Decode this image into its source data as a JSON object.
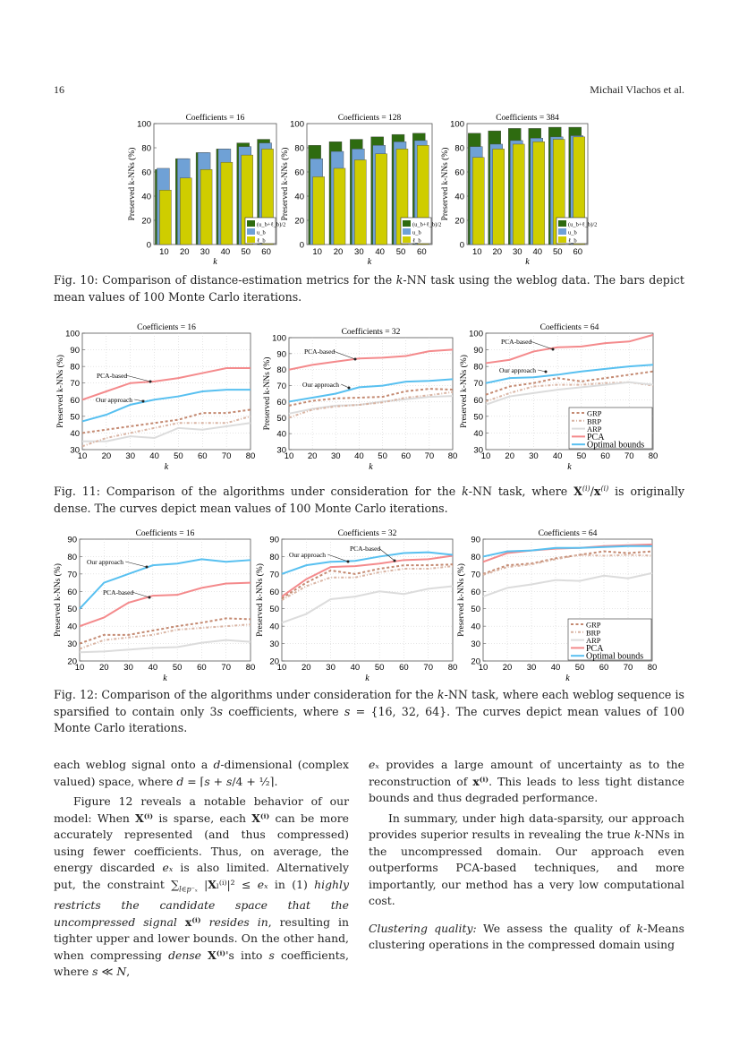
{
  "header": {
    "page_number": "16",
    "running_head": "Michail Vlachos et al."
  },
  "fig10": {
    "caption": [
      "Fig. 10: Comparison of distance-estimation metrics for the ",
      "k",
      "-NN task using the weblog data. The bars depict mean values of 100 Monte Carlo iterations."
    ]
  },
  "fig11": {
    "caption": [
      "Fig. 11: Comparison of the algorithms under consideration for the ",
      "k",
      "-NN task, where ",
      "X",
      "(i)",
      "/",
      "x",
      "(i)",
      " is originally dense. The curves depict mean values of 100 Monte Carlo iterations."
    ]
  },
  "fig12": {
    "caption": [
      "Fig. 12: Comparison of the algorithms under consideration for the ",
      "k",
      "-NN task, where each weblog sequence is sparsified to contain only 3",
      "s",
      " coefficients, where ",
      "s",
      " = {16, 32, 64}. The curves depict mean values of 100 Monte Carlo iterations."
    ]
  },
  "body": {
    "left": {
      "p1": [
        "each weblog signal onto a ",
        "d",
        "-dimensional (complex valued) space, where ",
        "d",
        " = ⌈",
        "s",
        " + ",
        "s",
        "/4 + ½⌉."
      ],
      "p2": [
        "Figure 12 reveals a notable behavior of our model: When ",
        "X⁽ⁱ⁾",
        " is sparse, each ",
        "X⁽ⁱ⁾",
        " can be more accurately represented (and thus compressed) using fewer coefficients. Thus, on average, the energy discarded ",
        "eₓ",
        " is also limited. Alternatively put, the constraint ∑",
        "l∈p⁻ₓ",
        " |",
        "X",
        "ₗ⁽ⁱ⁾|² ≤ ",
        "eₓ",
        " in (1) ",
        "highly restricts the candidate space that the uncompressed signal ",
        "x⁽ⁱ⁾",
        " resides in",
        ", resulting in tighter upper and lower bounds. On the other hand, when compressing ",
        "dense",
        " ",
        "X⁽ⁱ⁾",
        "'s into ",
        "s",
        " coefficients, where ",
        "s",
        " ≪ ",
        "N",
        ","
      ]
    },
    "right": {
      "p1": [
        "eₓ",
        " provides a large amount of uncertainty as to the reconstruction of ",
        "x⁽ⁱ⁾",
        ". This leads to less tight distance bounds and thus degraded performance."
      ],
      "p2": [
        "In summary, under high data-sparsity, our approach provides superior results in revealing the true ",
        "k",
        "-NNs in the uncompressed domain. Our approach even outperforms PCA-based techniques, and more importantly, our method has a very low computational cost."
      ],
      "p3": [
        "Clustering quality:",
        " We assess the quality of ",
        "k",
        "-Means clustering operations in the compressed domain using"
      ]
    }
  },
  "colors": {
    "avg": "#2e6b10",
    "ub": "#6fa1d6",
    "lb": "#cfcd00",
    "GRP": "#c48a72",
    "BRP": "#d9b4a3",
    "ARP": "#dcdcdc",
    "PCA": "#f48a8c",
    "Optimal": "#58c0f0"
  },
  "chart_data": [
    {
      "type": "bar",
      "figure": "Fig. 10",
      "title": "Coefficients = 16",
      "xlabel": "k",
      "ylabel": "Preserved k-NNs (%)",
      "ylim": [
        0,
        100
      ],
      "yticks": [
        "0",
        "20",
        "40",
        "60",
        "80",
        "100"
      ],
      "categories": [
        "10",
        "20",
        "30",
        "40",
        "50",
        "60"
      ],
      "legend": "bottom-right",
      "series": [
        {
          "name": "(u_b+ℓ_b)/2",
          "key": "avg",
          "values": [
            62,
            71,
            76,
            79,
            84,
            87
          ]
        },
        {
          "name": "u_b",
          "key": "ub",
          "values": [
            63,
            71,
            76,
            79,
            81,
            84
          ]
        },
        {
          "name": "ℓ_b",
          "key": "lb",
          "values": [
            45,
            55,
            62,
            68,
            74,
            79
          ]
        }
      ]
    },
    {
      "type": "bar",
      "figure": "Fig. 10",
      "title": "Coefficients = 128",
      "xlabel": "k",
      "ylabel": "Preserved k-NNs (%)",
      "ylim": [
        0,
        100
      ],
      "yticks": [
        "0",
        "20",
        "40",
        "60",
        "80",
        "100"
      ],
      "categories": [
        "10",
        "20",
        "30",
        "40",
        "50",
        "60"
      ],
      "legend": "bottom-right",
      "series": [
        {
          "name": "(u_b+ℓ_b)/2",
          "key": "avg",
          "values": [
            82,
            85,
            87,
            89,
            91,
            92
          ]
        },
        {
          "name": "u_b",
          "key": "ub",
          "values": [
            71,
            77,
            79,
            82,
            85,
            86
          ]
        },
        {
          "name": "ℓ_b",
          "key": "lb",
          "values": [
            56,
            63,
            70,
            75,
            79,
            82
          ]
        }
      ]
    },
    {
      "type": "bar",
      "figure": "Fig. 10",
      "title": "Coefficients = 384",
      "xlabel": "k",
      "ylabel": "Preserved k-NNs (%)",
      "ylim": [
        0,
        100
      ],
      "yticks": [
        "0",
        "20",
        "40",
        "60",
        "80",
        "100"
      ],
      "categories": [
        "10",
        "20",
        "30",
        "40",
        "50",
        "60"
      ],
      "legend": "bottom-right",
      "series": [
        {
          "name": "(u_b+ℓ_b)/2",
          "key": "avg",
          "values": [
            92,
            94,
            96,
            96,
            97,
            97
          ]
        },
        {
          "name": "u_b",
          "key": "ub",
          "values": [
            81,
            83,
            86,
            88,
            89,
            90
          ]
        },
        {
          "name": "ℓ_b",
          "key": "lb",
          "values": [
            72,
            79,
            83,
            85,
            87,
            89
          ]
        }
      ]
    },
    {
      "type": "line",
      "figure": "Fig. 11",
      "title": "Coefficients = 16",
      "xlabel": "k",
      "ylabel": "Preserved k-NNs (%)",
      "xlim": [
        10,
        80
      ],
      "ylim": [
        30,
        100
      ],
      "grid": true,
      "x": [
        10,
        20,
        30,
        40,
        50,
        60,
        70,
        80
      ],
      "xticks": [
        "10",
        "20",
        "30",
        "40",
        "50",
        "60",
        "70",
        "80"
      ],
      "yticks": [
        "30",
        "40",
        "50",
        "60",
        "70",
        "80",
        "90",
        "100"
      ],
      "annotations": [
        "PCA-based",
        "Our approach"
      ],
      "series": [
        {
          "key": "ARP",
          "values": [
            35,
            35,
            38,
            37,
            43,
            42,
            44,
            46
          ]
        },
        {
          "key": "BRP",
          "values": [
            32,
            37,
            40,
            43,
            46,
            46,
            46,
            50
          ]
        },
        {
          "key": "GRP",
          "values": [
            40,
            42,
            44,
            46,
            48,
            52,
            52,
            54
          ]
        },
        {
          "key": "PCA",
          "values": [
            60,
            65,
            70,
            71,
            73,
            76,
            79,
            79
          ]
        },
        {
          "key": "Optimal",
          "values": [
            47,
            51,
            57,
            60,
            62,
            65,
            66,
            66
          ]
        }
      ]
    },
    {
      "type": "line",
      "figure": "Fig. 11",
      "title": "Coefficients = 32",
      "xlabel": "k",
      "ylabel": "Preserved k-NNs (%)",
      "xlim": [
        10,
        80
      ],
      "ylim": [
        30,
        100
      ],
      "grid": true,
      "x": [
        10,
        20,
        30,
        40,
        50,
        60,
        70,
        80
      ],
      "xticks": [
        "10",
        "20",
        "30",
        "40",
        "50",
        "60",
        "70",
        "80"
      ],
      "yticks": [
        "30",
        "40",
        "50",
        "60",
        "70",
        "80",
        "90",
        "100"
      ],
      "annotations": [
        "PCA-based",
        "Our approach"
      ],
      "series": [
        {
          "key": "ARP",
          "values": [
            52.5,
            55.5,
            57.5,
            58,
            60,
            61.5,
            63,
            63.5
          ]
        },
        {
          "key": "BRP",
          "values": [
            50,
            55,
            57,
            58,
            59.5,
            62.5,
            64,
            66
          ]
        },
        {
          "key": "GRP",
          "values": [
            57.5,
            60.5,
            62,
            62.5,
            63,
            66.5,
            68,
            67.5
          ]
        },
        {
          "key": "PCA",
          "values": [
            80,
            83,
            85,
            87,
            87.5,
            88.5,
            91.5,
            92.5
          ]
        },
        {
          "key": "Optimal",
          "values": [
            60,
            62.5,
            65,
            69,
            70,
            72.5,
            73,
            74
          ]
        }
      ]
    },
    {
      "type": "line",
      "figure": "Fig. 11",
      "title": "Coefficients = 64",
      "xlabel": "k",
      "ylabel": "Preserved k-NNs (%)",
      "xlim": [
        10,
        80
      ],
      "ylim": [
        30,
        100
      ],
      "grid": true,
      "x": [
        10,
        20,
        30,
        40,
        50,
        60,
        70,
        80
      ],
      "xticks": [
        "10",
        "20",
        "30",
        "40",
        "50",
        "60",
        "70",
        "80"
      ],
      "yticks": [
        "30",
        "40",
        "50",
        "60",
        "70",
        "80",
        "90",
        "100"
      ],
      "annotations": [
        "PCA-based",
        "Our approach"
      ],
      "legend": "bottom-right",
      "series": [
        {
          "name": "GRP",
          "key": "GRP",
          "values": [
            63,
            68,
            70,
            73,
            71,
            73,
            75,
            77
          ]
        },
        {
          "name": "BRP",
          "key": "BRP",
          "values": [
            59,
            64,
            68,
            69,
            69,
            70,
            70.5,
            68.5
          ]
        },
        {
          "name": "ARP",
          "key": "ARP",
          "values": [
            57,
            62,
            64,
            66,
            67.5,
            69,
            70.5,
            69
          ]
        },
        {
          "name": "PCA",
          "key": "PCA",
          "values": [
            82,
            84,
            89,
            91.5,
            92,
            94,
            95,
            99
          ]
        },
        {
          "name": "Optimal bounds",
          "key": "Optimal",
          "values": [
            70,
            73,
            73.5,
            75,
            77,
            78.5,
            80,
            81
          ]
        }
      ]
    },
    {
      "type": "line",
      "figure": "Fig. 12",
      "title": "Coefficients = 16",
      "xlabel": "k",
      "ylabel": "Preserved k-NNs (%)",
      "xlim": [
        10,
        80
      ],
      "ylim": [
        20,
        90
      ],
      "grid": true,
      "x": [
        10,
        20,
        30,
        40,
        50,
        60,
        70,
        80
      ],
      "xticks": [
        "10",
        "20",
        "30",
        "40",
        "50",
        "60",
        "70",
        "80"
      ],
      "yticks": [
        "20",
        "30",
        "40",
        "50",
        "60",
        "70",
        "80",
        "90"
      ],
      "annotations": [
        "Our approach",
        "PCA-based"
      ],
      "series": [
        {
          "key": "ARP",
          "values": [
            25,
            25.5,
            26.5,
            27.5,
            28,
            30.5,
            32,
            31
          ]
        },
        {
          "key": "BRP",
          "values": [
            27,
            32,
            33.5,
            35,
            38,
            39,
            40,
            41
          ]
        },
        {
          "key": "GRP",
          "values": [
            30,
            35,
            35,
            37.5,
            40,
            42,
            44.5,
            44
          ]
        },
        {
          "key": "PCA",
          "values": [
            40,
            45,
            53.5,
            57.5,
            58,
            62,
            64.5,
            65
          ]
        },
        {
          "key": "Optimal",
          "values": [
            50,
            65,
            70,
            75,
            76,
            78.5,
            77,
            78
          ]
        }
      ]
    },
    {
      "type": "line",
      "figure": "Fig. 12",
      "title": "Coefficients = 32",
      "xlabel": "k",
      "ylabel": "Preserved k-NNs (%)",
      "xlim": [
        10,
        80
      ],
      "ylim": [
        20,
        90
      ],
      "grid": true,
      "x": [
        10,
        20,
        30,
        40,
        50,
        60,
        70,
        80
      ],
      "xticks": [
        "10",
        "20",
        "30",
        "40",
        "50",
        "60",
        "70",
        "80"
      ],
      "yticks": [
        "20",
        "30",
        "40",
        "50",
        "60",
        "70",
        "80",
        "90"
      ],
      "annotations": [
        "Our approach",
        "PCA-based"
      ],
      "series": [
        {
          "key": "ARP",
          "values": [
            42,
            47,
            55.5,
            57,
            60,
            58.5,
            61.5,
            63
          ]
        },
        {
          "key": "BRP",
          "values": [
            55,
            63,
            68,
            68,
            71,
            73,
            73,
            74.5
          ]
        },
        {
          "key": "GRP",
          "values": [
            56,
            65,
            72,
            70,
            73,
            75,
            75,
            75.5
          ]
        },
        {
          "key": "PCA",
          "values": [
            57,
            67,
            74,
            74.5,
            76,
            78,
            78.5,
            80.5
          ]
        },
        {
          "key": "Optimal",
          "values": [
            70,
            75,
            77,
            77.5,
            80,
            82,
            82.5,
            81
          ]
        }
      ]
    },
    {
      "type": "line",
      "figure": "Fig. 12",
      "title": "Coefficients = 64",
      "xlabel": "k",
      "ylabel": "Preserved k-NNs (%)",
      "xlim": [
        10,
        80
      ],
      "ylim": [
        20,
        90
      ],
      "grid": true,
      "x": [
        10,
        20,
        30,
        40,
        50,
        60,
        70,
        80
      ],
      "xticks": [
        "10",
        "20",
        "30",
        "40",
        "50",
        "60",
        "70",
        "80"
      ],
      "yticks": [
        "20",
        "30",
        "40",
        "50",
        "60",
        "70",
        "80",
        "90"
      ],
      "annotations": [],
      "legend": "bottom-right",
      "series": [
        {
          "name": "GRP",
          "key": "GRP",
          "values": [
            70,
            75,
            76,
            79,
            81,
            83,
            82,
            83
          ]
        },
        {
          "name": "BRP",
          "key": "BRP",
          "values": [
            69.5,
            74,
            75.5,
            78.5,
            81,
            80.5,
            81,
            80.5
          ]
        },
        {
          "name": "ARP",
          "key": "ARP",
          "values": [
            57,
            62,
            64,
            66.5,
            66,
            69,
            67.5,
            70.5
          ]
        },
        {
          "name": "PCA",
          "key": "PCA",
          "values": [
            77,
            82,
            83.5,
            84.5,
            85,
            86,
            86.5,
            87
          ]
        },
        {
          "name": "Optimal bounds",
          "key": "Optimal",
          "values": [
            80,
            83,
            83.5,
            85,
            85,
            85.5,
            86,
            86
          ]
        }
      ]
    }
  ]
}
